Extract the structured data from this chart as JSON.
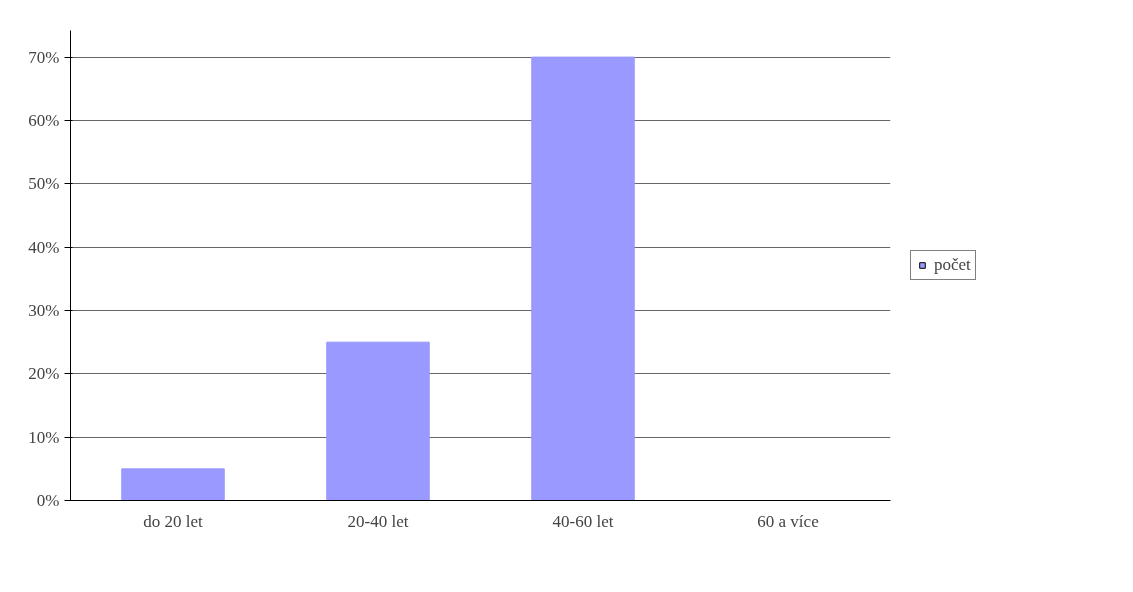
{
  "chart_data": {
    "type": "bar",
    "categories": [
      "do 20 let",
      "20-40 let",
      "40-60 let",
      "60 a více"
    ],
    "series": [
      {
        "name": "počet",
        "color": "#9999ff",
        "values": [
          5,
          25,
          70,
          0
        ]
      }
    ],
    "ylim": [
      0,
      70
    ],
    "yticks": [
      {
        "value": 0,
        "label": "0%"
      },
      {
        "value": 10,
        "label": "10%"
      },
      {
        "value": 20,
        "label": "20%"
      },
      {
        "value": 30,
        "label": "30%"
      },
      {
        "value": 40,
        "label": "40%"
      },
      {
        "value": 50,
        "label": "50%"
      },
      {
        "value": 60,
        "label": "60%"
      },
      {
        "value": 70,
        "label": "70%"
      }
    ],
    "grid": "y",
    "legend": "right"
  }
}
